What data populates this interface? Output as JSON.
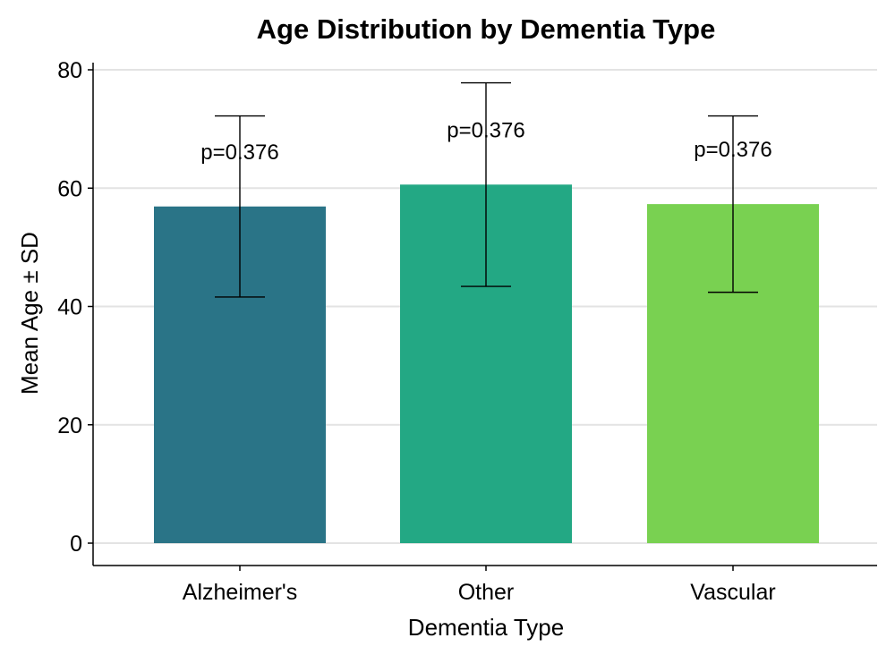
{
  "chart_data": {
    "type": "bar",
    "title": "Age Distribution by Dementia Type",
    "xlabel": "Dementia Type",
    "ylabel": "Mean Age ± SD",
    "categories": [
      "Alzheimer's",
      "Other",
      "Vascular"
    ],
    "values": [
      56.9,
      60.6,
      57.3
    ],
    "sd": [
      15.3,
      17.2,
      14.9
    ],
    "labels": [
      "p=0.376",
      "p=0.376",
      "p=0.376"
    ],
    "colors": [
      "#2a7487",
      "#23a884",
      "#79d151"
    ],
    "ylim": [
      0,
      80
    ],
    "yticks": [
      0,
      20,
      40,
      60,
      80
    ],
    "grid": "horizontal"
  }
}
